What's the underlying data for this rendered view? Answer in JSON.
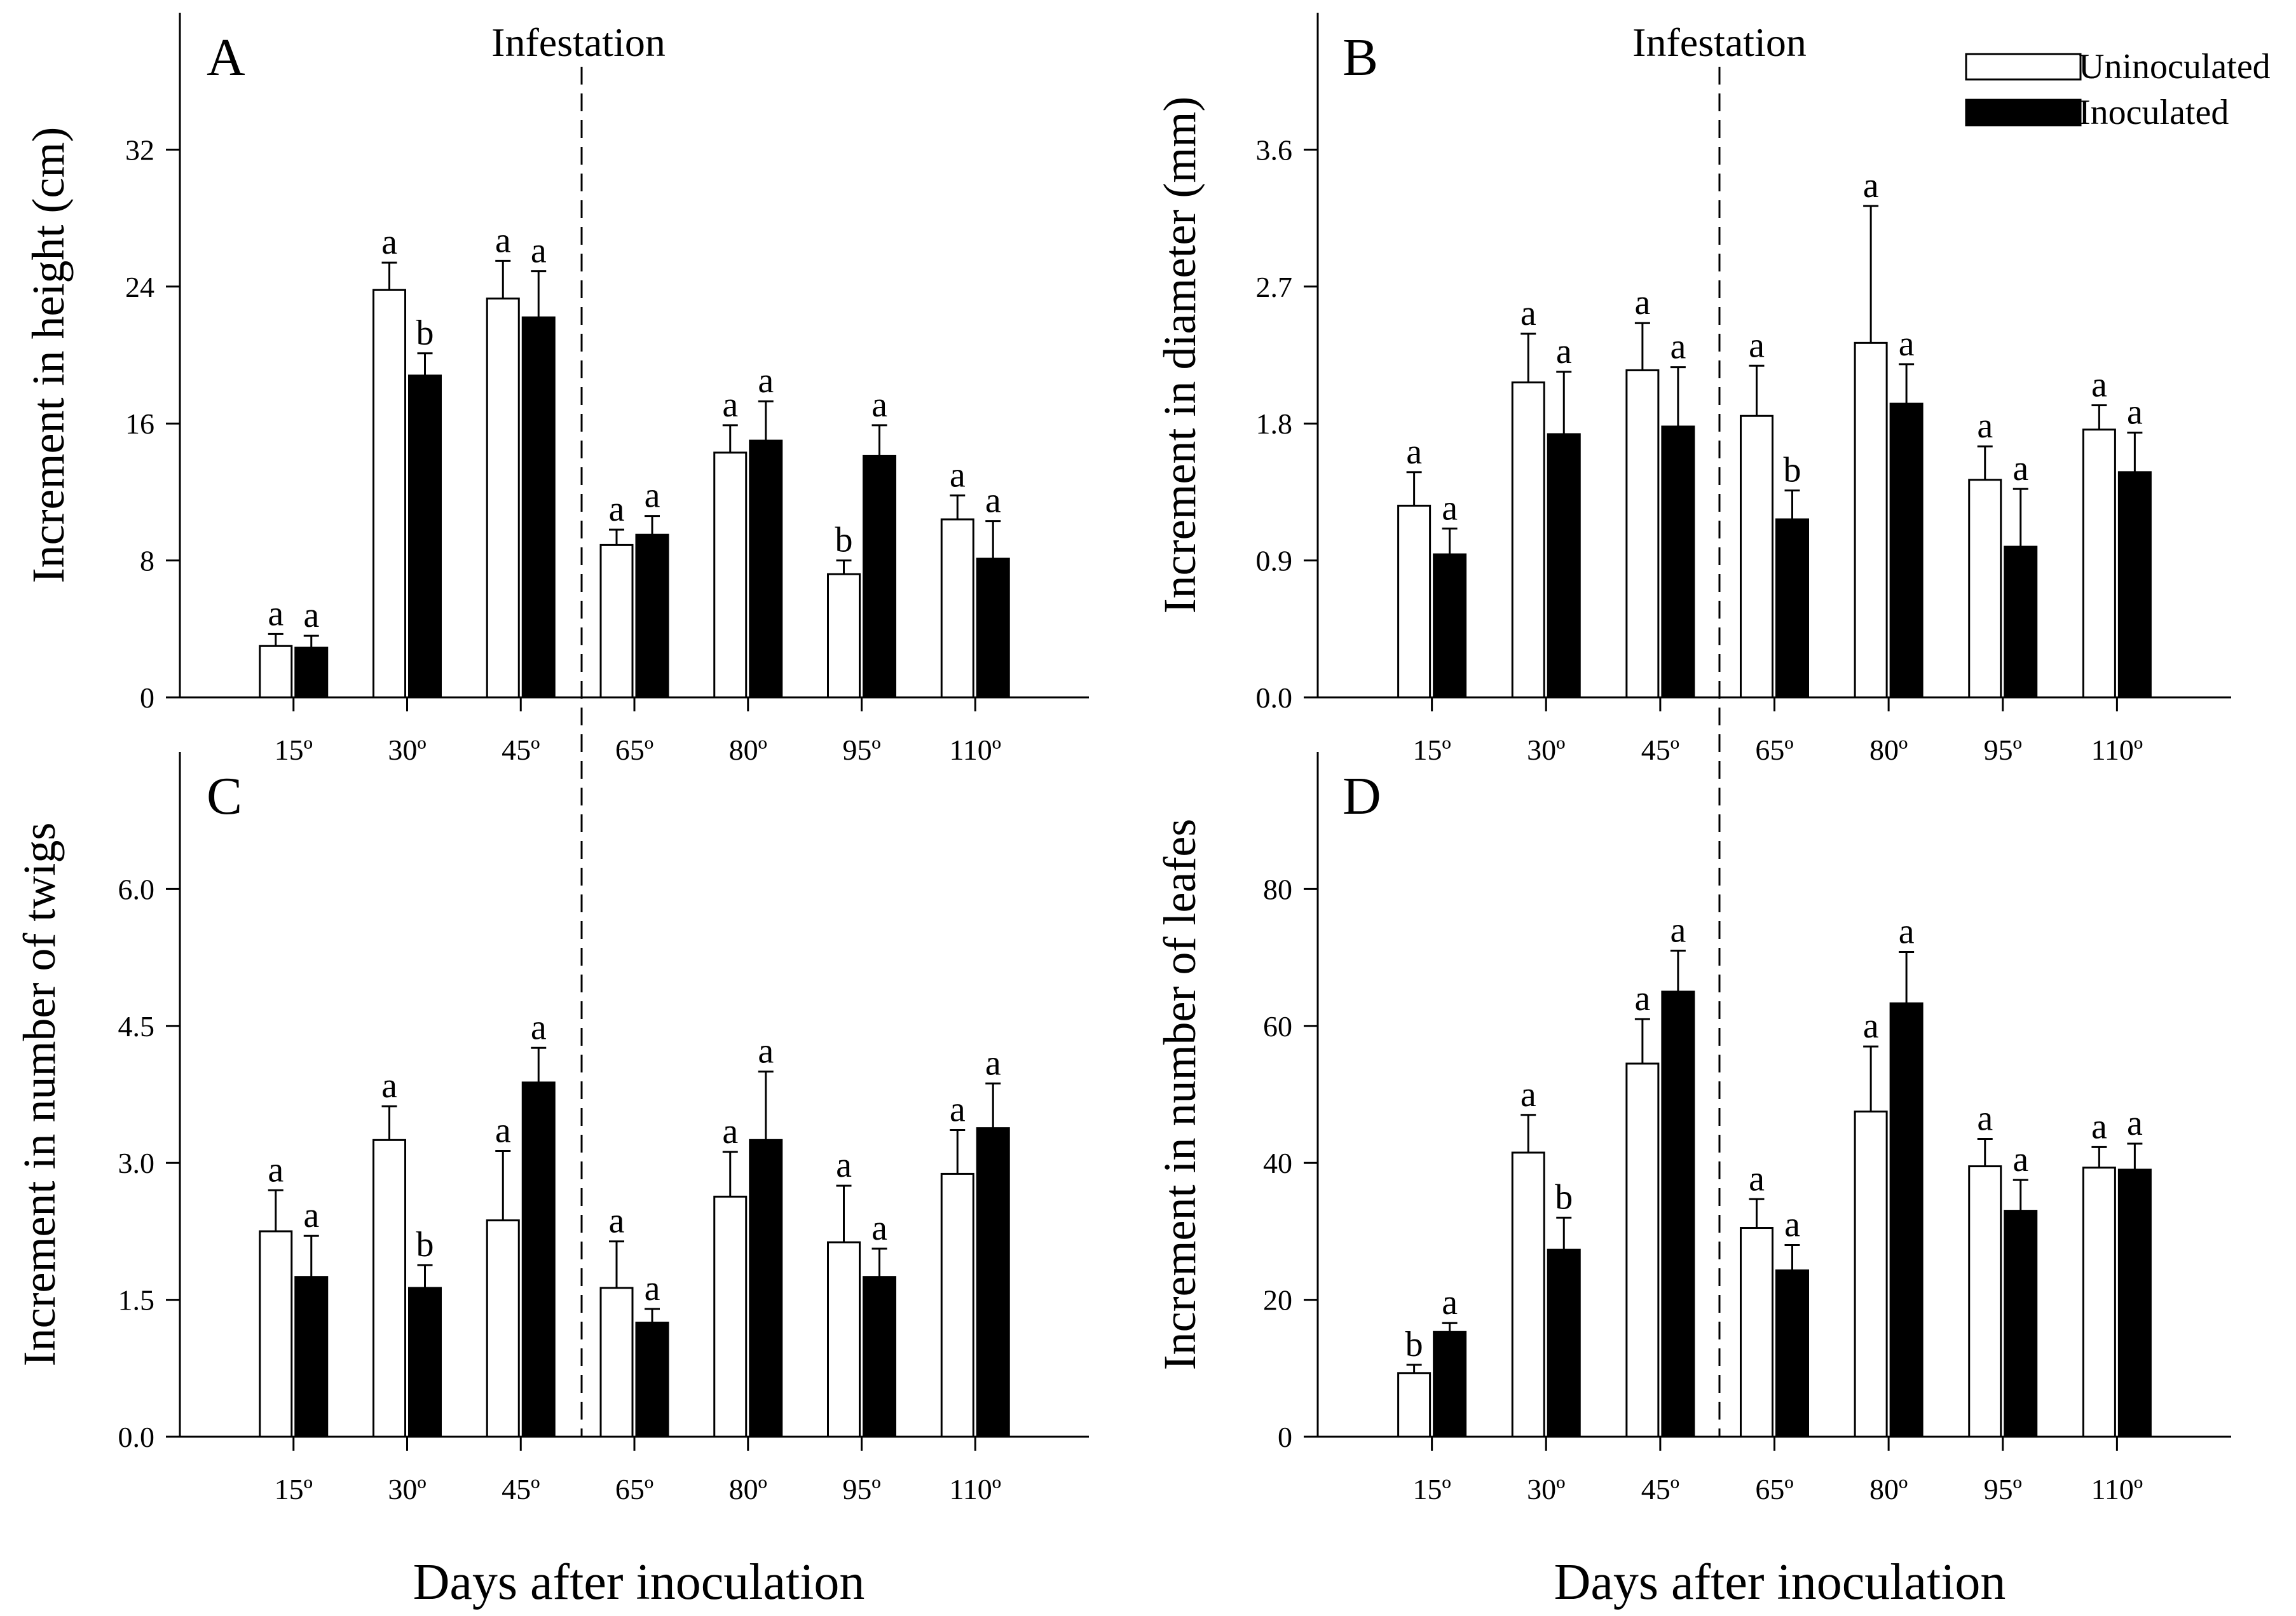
{
  "figure": {
    "xlabel_left": "Days after inoculation",
    "xlabel_right": "Days after inoculation",
    "infestation_label": "Infestation"
  },
  "legend": {
    "items": [
      {
        "label": "Uninoculated",
        "fill": "#ffffff"
      },
      {
        "label": "Inoculated",
        "fill": "#000000"
      }
    ]
  },
  "chart_data": [
    {
      "panel": "A",
      "type": "bar",
      "title": "",
      "xlabel": "Days after inoculation",
      "ylabel": "Increment in height (cm)",
      "categories": [
        "15º",
        "30º",
        "45º",
        "65º",
        "80º",
        "95º",
        "110º"
      ],
      "ylim": [
        0,
        40
      ],
      "yticks": [
        0,
        8,
        16,
        24,
        32
      ],
      "ytick_labels": [
        "0",
        "8",
        "16",
        "24",
        "32"
      ],
      "series": [
        {
          "name": "Uninoculated",
          "values": [
            3.0,
            23.8,
            23.3,
            8.9,
            14.3,
            7.2,
            10.4
          ],
          "errors": [
            0.7,
            1.6,
            2.2,
            0.9,
            1.6,
            0.8,
            1.4
          ],
          "letters": [
            "a",
            "a",
            "a",
            "a",
            "a",
            "b",
            "a"
          ]
        },
        {
          "name": "Inoculated",
          "values": [
            2.9,
            18.8,
            22.2,
            9.5,
            15.0,
            14.1,
            8.1
          ],
          "errors": [
            0.7,
            1.3,
            2.7,
            1.1,
            2.3,
            1.8,
            2.2
          ],
          "letters": [
            "a",
            "b",
            "a",
            "a",
            "a",
            "a",
            "a"
          ]
        }
      ]
    },
    {
      "panel": "B",
      "type": "bar",
      "title": "",
      "xlabel": "Days after inoculation",
      "ylabel": "Increment in diameter (mm)",
      "categories": [
        "15º",
        "30º",
        "45º",
        "65º",
        "80º",
        "95º",
        "110º"
      ],
      "ylim": [
        0,
        4.5
      ],
      "yticks": [
        0,
        0.9,
        1.8,
        2.7,
        3.6
      ],
      "ytick_labels": [
        "0.0",
        "0.9",
        "1.8",
        "2.7",
        "3.6"
      ],
      "series": [
        {
          "name": "Uninoculated",
          "values": [
            1.26,
            2.07,
            2.15,
            1.85,
            2.33,
            1.43,
            1.76
          ],
          "errors": [
            0.22,
            0.32,
            0.31,
            0.33,
            0.9,
            0.22,
            0.16
          ],
          "letters": [
            "a",
            "a",
            "a",
            "a",
            "a",
            "a",
            "a"
          ]
        },
        {
          "name": "Inoculated",
          "values": [
            0.94,
            1.73,
            1.78,
            1.17,
            1.93,
            0.99,
            1.48
          ],
          "errors": [
            0.17,
            0.41,
            0.39,
            0.19,
            0.26,
            0.38,
            0.26
          ],
          "letters": [
            "a",
            "a",
            "a",
            "b",
            "a",
            "a",
            "a"
          ]
        }
      ]
    },
    {
      "panel": "C",
      "type": "bar",
      "title": "",
      "xlabel": "Days after inoculation",
      "ylabel": "Increment in number of twigs",
      "categories": [
        "15º",
        "30º",
        "45º",
        "65º",
        "80º",
        "95º",
        "110º"
      ],
      "ylim": [
        0,
        7.5
      ],
      "yticks": [
        0,
        1.5,
        3.0,
        4.5,
        6.0
      ],
      "ytick_labels": [
        "0.0",
        "1.5",
        "3.0",
        "4.5",
        "6.0"
      ],
      "series": [
        {
          "name": "Uninoculated",
          "values": [
            2.25,
            3.25,
            2.37,
            1.63,
            2.63,
            2.13,
            2.88
          ],
          "errors": [
            0.45,
            0.37,
            0.76,
            0.51,
            0.49,
            0.62,
            0.48
          ],
          "letters": [
            "a",
            "a",
            "a",
            "a",
            "a",
            "a",
            "a"
          ]
        },
        {
          "name": "Inoculated",
          "values": [
            1.75,
            1.63,
            3.88,
            1.25,
            3.25,
            1.75,
            3.38
          ],
          "errors": [
            0.45,
            0.25,
            0.38,
            0.15,
            0.75,
            0.31,
            0.49
          ],
          "letters": [
            "a",
            "b",
            "a",
            "a",
            "a",
            "a",
            "a"
          ]
        }
      ]
    },
    {
      "panel": "D",
      "type": "bar",
      "title": "",
      "xlabel": "Days after inoculation",
      "ylabel": "Increment in number of leafes",
      "categories": [
        "15º",
        "30º",
        "45º",
        "65º",
        "80º",
        "95º",
        "110º"
      ],
      "ylim": [
        0,
        100
      ],
      "yticks": [
        0,
        20,
        40,
        60,
        80
      ],
      "ytick_labels": [
        "0",
        "20",
        "40",
        "60",
        "80"
      ],
      "series": [
        {
          "name": "Uninoculated",
          "values": [
            9.3,
            41.5,
            54.5,
            30.5,
            47.5,
            39.5,
            39.3
          ],
          "errors": [
            1.2,
            5.5,
            6.5,
            4.2,
            9.5,
            4.0,
            3.0
          ],
          "letters": [
            "b",
            "a",
            "a",
            "a",
            "a",
            "a",
            "a"
          ]
        },
        {
          "name": "Inoculated",
          "values": [
            15.3,
            27.3,
            65.0,
            24.3,
            63.3,
            33.0,
            39.0
          ],
          "errors": [
            1.3,
            4.7,
            6.0,
            3.7,
            7.5,
            4.5,
            3.8
          ],
          "letters": [
            "a",
            "b",
            "a",
            "a",
            "a",
            "a",
            "a"
          ]
        }
      ]
    }
  ]
}
